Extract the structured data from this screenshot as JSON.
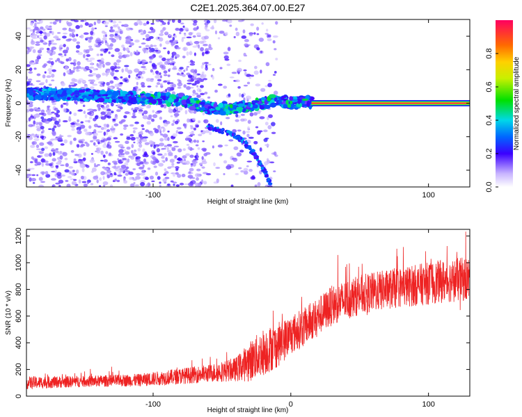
{
  "title": "C2E1.2025.364.07.00.E27",
  "chart_data": [
    {
      "type": "heatmap",
      "name": "spectrogram",
      "xlabel": "Height of straight line (km)",
      "ylabel": "Frequency (Hz)",
      "xlim": [
        -192,
        130
      ],
      "ylim": [
        -50,
        50
      ],
      "xticks": [
        -100,
        0,
        100
      ],
      "xtick_labels": [
        "-100",
        "",
        "100"
      ],
      "yticks": [
        -40,
        -20,
        0,
        20,
        40
      ],
      "ytick_labels": [
        "-40",
        "-20",
        "0",
        "20",
        "40"
      ],
      "colorbar": {
        "label": "Normalized spectral amplitude",
        "range": [
          0,
          1
        ],
        "ticks": [
          0.0,
          0.2,
          0.4,
          0.6,
          0.8
        ],
        "tick_labels": [
          "0.0",
          "0.2",
          "0.4",
          "0.6",
          "0.8"
        ]
      },
      "features": {
        "main_line": {
          "x_from": 15,
          "x_to": 130,
          "freq": 0,
          "amplitude": 1.0
        },
        "noisy_band_centerline": [
          [
            -192,
            6
          ],
          [
            -150,
            5
          ],
          [
            -110,
            3
          ],
          [
            -80,
            2
          ],
          [
            -60,
            -3
          ],
          [
            -40,
            -3
          ],
          [
            -20,
            0
          ],
          [
            -10,
            2
          ],
          [
            0,
            0
          ],
          [
            10,
            1
          ],
          [
            15,
            0
          ]
        ],
        "descending_branch": [
          [
            -60,
            -14
          ],
          [
            -45,
            -18
          ],
          [
            -35,
            -22
          ],
          [
            -25,
            -32
          ],
          [
            -15,
            -47
          ]
        ],
        "background_speckle_region": [
          -192,
          -60
        ],
        "sparse_speckle_region": [
          -60,
          -10
        ]
      }
    },
    {
      "type": "line",
      "name": "snr",
      "xlabel": "Height of straight line (km)",
      "ylabel": "SNR (10 * v/v)",
      "xlim": [
        -192,
        130
      ],
      "ylim": [
        0,
        1250
      ],
      "xticks": [
        -100,
        0,
        100
      ],
      "xtick_labels": [
        "-100",
        "0",
        "100"
      ],
      "yticks": [
        0,
        200,
        400,
        600,
        800,
        1000,
        1200
      ],
      "ytick_labels": [
        "0",
        "200",
        "400",
        "600",
        "800",
        "1000",
        "1200"
      ],
      "series_color": "#ee2222",
      "envelope": {
        "x": [
          -192,
          -150,
          -110,
          -80,
          -60,
          -40,
          -30,
          -20,
          -10,
          0,
          10,
          20,
          30,
          50,
          70,
          90,
          110,
          130
        ],
        "mean": [
          100,
          110,
          120,
          150,
          170,
          200,
          260,
          330,
          380,
          460,
          520,
          600,
          680,
          760,
          800,
          830,
          860,
          880
        ],
        "spread": [
          80,
          70,
          80,
          100,
          110,
          150,
          250,
          300,
          280,
          250,
          240,
          240,
          250,
          250,
          250,
          260,
          270,
          280
        ]
      }
    }
  ]
}
